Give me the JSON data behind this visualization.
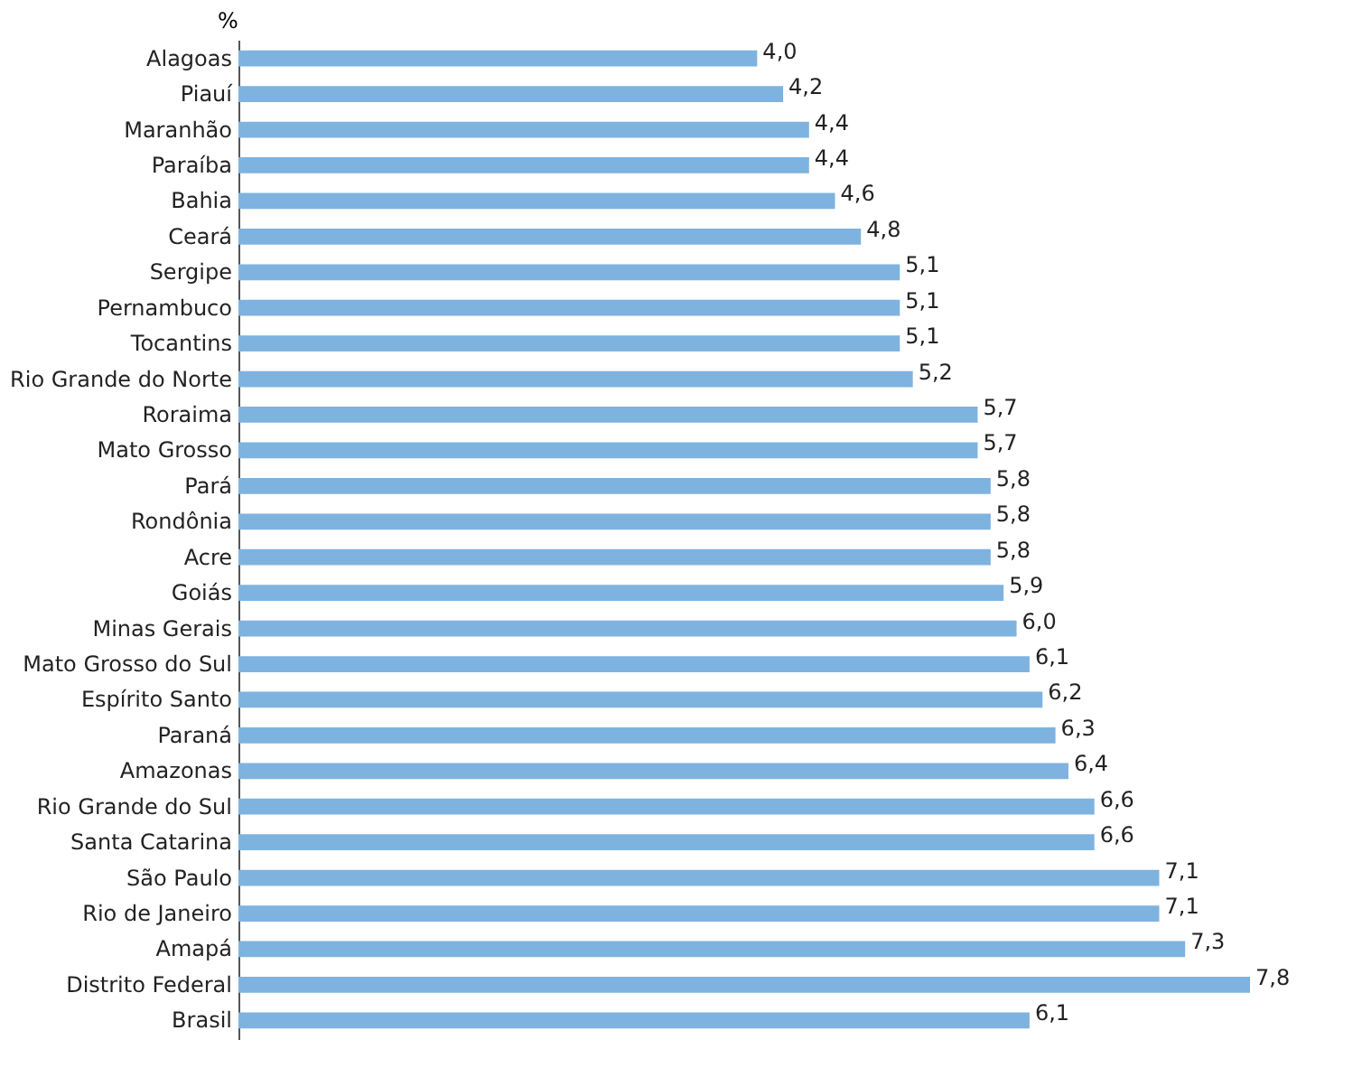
{
  "chart_data": {
    "type": "bar",
    "orientation": "horizontal",
    "xlabel": "%",
    "categories": [
      "Alagoas",
      "Piauí",
      "Maranhão",
      "Paraíba",
      "Bahia",
      "Ceará",
      "Sergipe",
      "Pernambuco",
      "Tocantins",
      "Rio Grande do Norte",
      "Roraima",
      "Mato Grosso",
      "Pará",
      "Rondônia",
      "Acre",
      "Goiás",
      "Minas Gerais",
      "Mato Grosso do Sul",
      "Espírito Santo",
      "Paraná",
      "Amazonas",
      "Rio Grande do Sul",
      "Santa Catarina",
      "São Paulo",
      "Rio de Janeiro",
      "Amapá",
      "Distrito Federal",
      "Brasil"
    ],
    "values": [
      4.0,
      4.2,
      4.4,
      4.4,
      4.6,
      4.8,
      5.1,
      5.1,
      5.1,
      5.2,
      5.7,
      5.7,
      5.8,
      5.8,
      5.8,
      5.9,
      6.0,
      6.1,
      6.2,
      6.3,
      6.4,
      6.6,
      6.6,
      7.1,
      7.1,
      7.3,
      7.8,
      6.1
    ],
    "value_labels": [
      "4,0",
      "4,2",
      "4,4",
      "4,4",
      "4,6",
      "4,8",
      "5,1",
      "5,1",
      "5,1",
      "5,2",
      "5,7",
      "5,7",
      "5,8",
      "5,8",
      "5,8",
      "5,9",
      "6,0",
      "6,1",
      "6,2",
      "6,3",
      "6,4",
      "6,6",
      "6,6",
      "7,1",
      "7,1",
      "7,3",
      "7,8",
      "6,1"
    ],
    "color": "#7eb3e0",
    "grid": false
  }
}
